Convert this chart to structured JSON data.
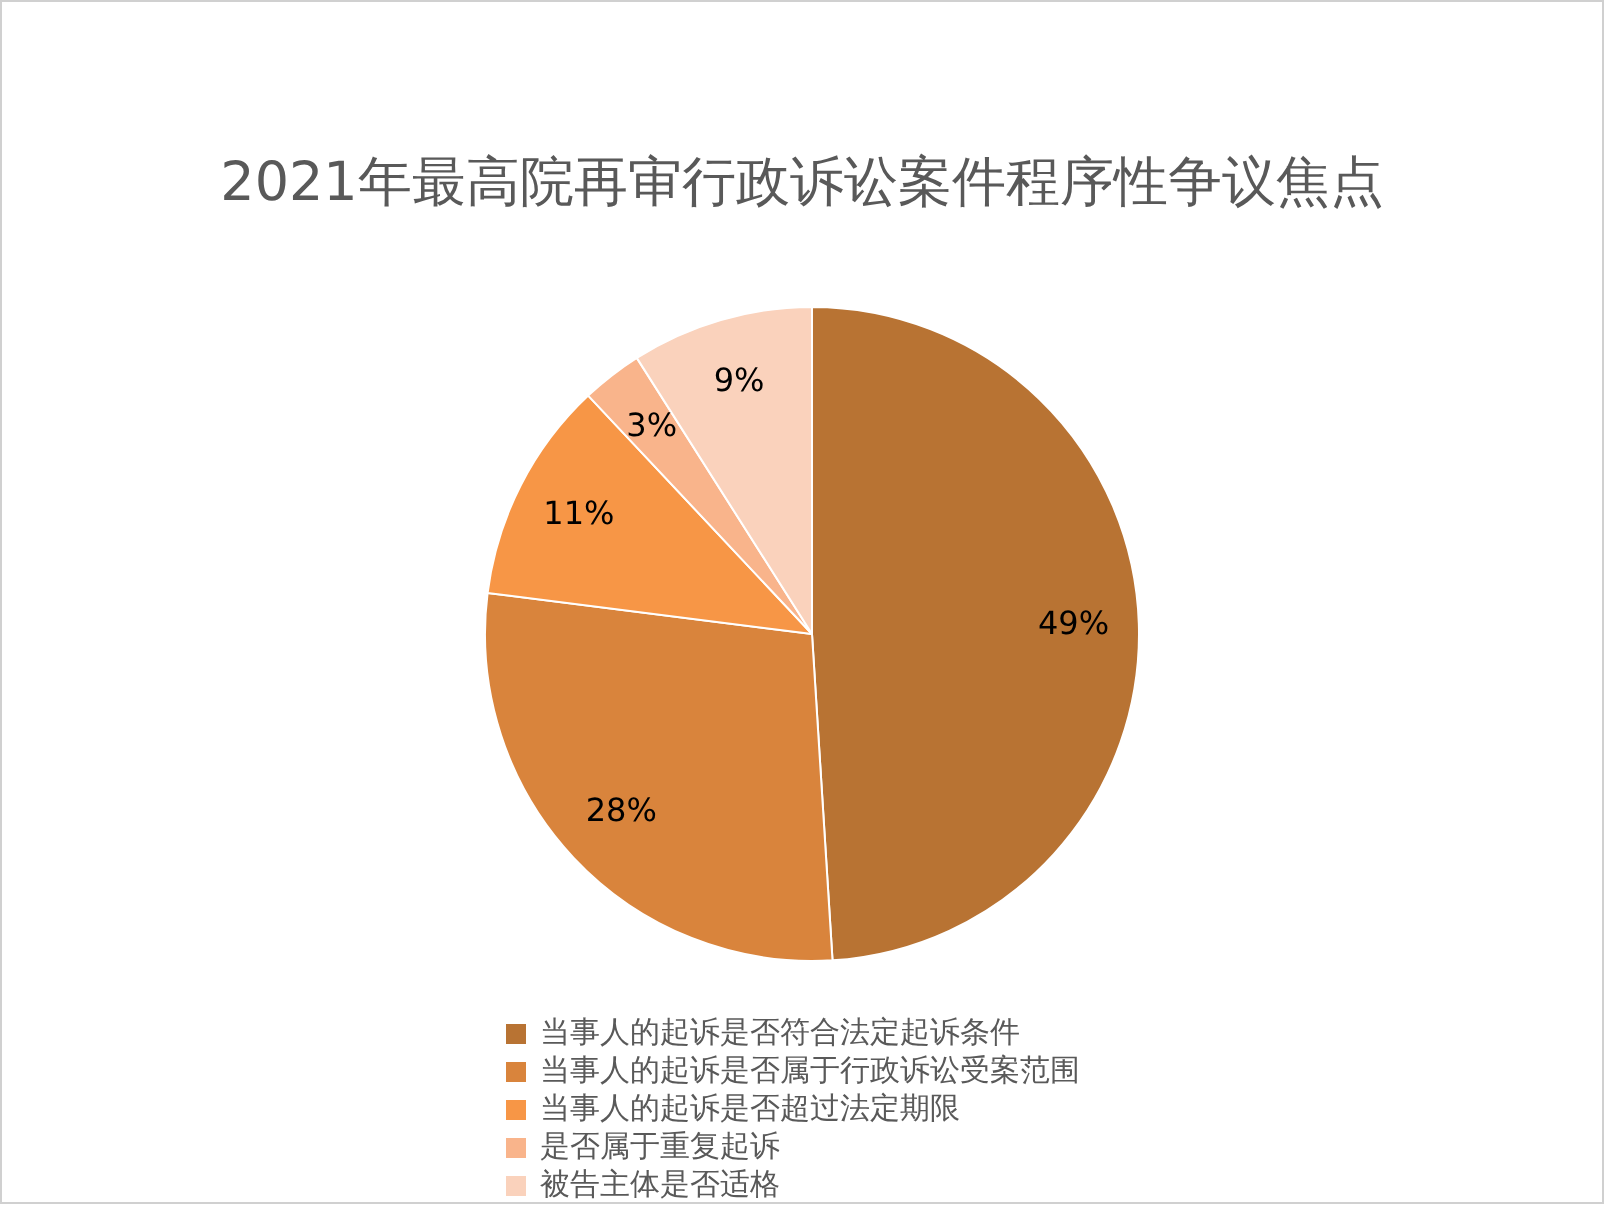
{
  "chart_data": {
    "type": "pie",
    "title": "2021年最高院再审行政诉讼案件程序性争议焦点",
    "categories": [
      "当事人的起诉是否符合法定起诉条件",
      "当事人的起诉是否属于行政诉讼受案范围",
      "当事人的起诉是否超过法定期限",
      "是否属于重复起诉",
      "被告主体是否适格"
    ],
    "values": [
      49,
      28,
      11,
      3,
      9
    ],
    "value_labels": [
      "49%",
      "28%",
      "11%",
      "3%",
      "9%"
    ],
    "colors": [
      "#b87333",
      "#d9843c",
      "#f79646",
      "#f9b48b",
      "#fad2bc"
    ],
    "legend": "bottom"
  }
}
